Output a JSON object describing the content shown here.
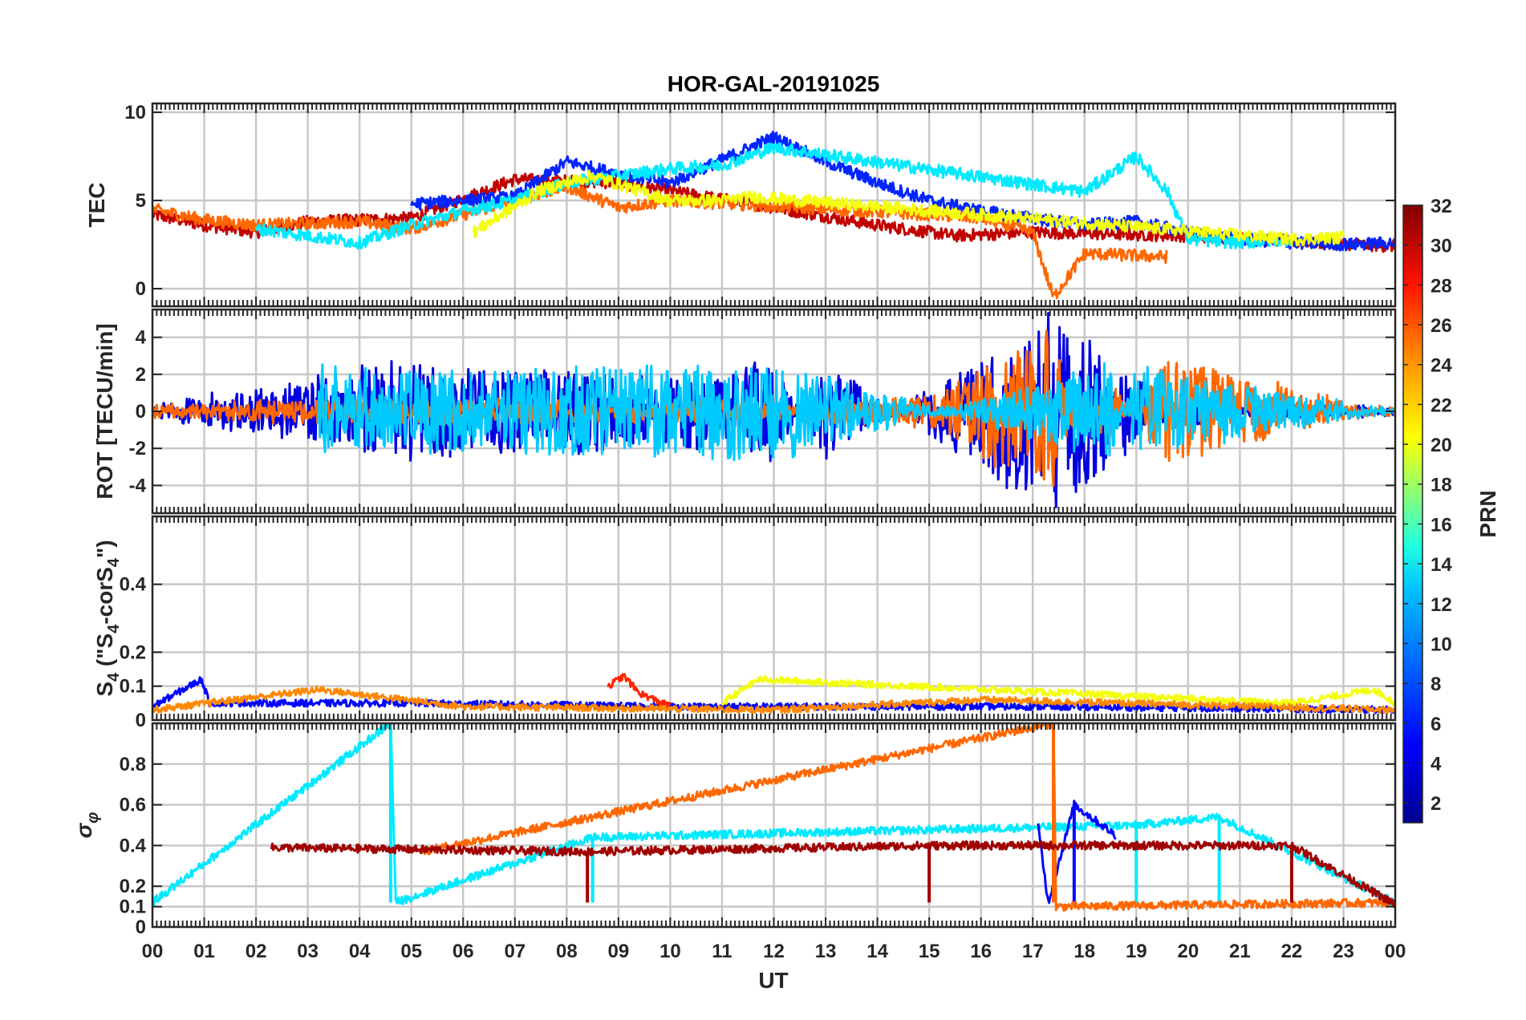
{
  "chart_data": {
    "type": "line",
    "title": "HOR-GAL-20191025",
    "xlabel": "UT",
    "x_ticks": [
      "00",
      "01",
      "02",
      "03",
      "04",
      "05",
      "06",
      "07",
      "08",
      "09",
      "10",
      "11",
      "12",
      "13",
      "14",
      "15",
      "16",
      "17",
      "18",
      "19",
      "20",
      "21",
      "22",
      "23",
      "00"
    ],
    "x_range_hours": [
      0,
      24
    ],
    "colorbar": {
      "label": "PRN",
      "range": [
        1,
        32
      ],
      "ticks": [
        "2",
        "4",
        "6",
        "8",
        "10",
        "12",
        "14",
        "16",
        "18",
        "20",
        "22",
        "24",
        "26",
        "28",
        "30",
        "32"
      ],
      "tick_values": [
        2,
        4,
        6,
        8,
        10,
        12,
        14,
        16,
        18,
        20,
        22,
        24,
        26,
        28,
        30,
        32
      ],
      "colormap": "jet",
      "colors": [
        "#00008f",
        "#0000ff",
        "#0080ff",
        "#00ffff",
        "#80ff80",
        "#ffff00",
        "#ff8000",
        "#ff0000",
        "#800000"
      ]
    },
    "panels": [
      {
        "id": "tec",
        "ylabel": "TEC",
        "ylim": [
          -1,
          10.5
        ],
        "yticks": [
          0,
          5,
          10
        ],
        "ytick_labels": [
          "0",
          "5",
          "10"
        ],
        "series_summary": [
          {
            "prn": 30,
            "x": [
              0,
              1,
              2,
              3,
              5,
              7,
              9,
              12,
              14,
              15.5,
              17,
              20,
              22,
              24
            ],
            "y": [
              4.2,
              3.6,
              3.2,
              3.8,
              4.0,
              6.2,
              6.0,
              4.6,
              3.6,
              3.0,
              3.2,
              3.0,
              2.7,
              2.4
            ]
          },
          {
            "prn": 25,
            "x": [
              0,
              1,
              2,
              3,
              4,
              5,
              6,
              7,
              8,
              9,
              10,
              15,
              16,
              17,
              17.4,
              18,
              19.6
            ],
            "y": [
              4.5,
              3.9,
              3.6,
              3.7,
              3.8,
              3.4,
              4.2,
              5.0,
              5.8,
              4.6,
              5.0,
              4.2,
              4.0,
              3.2,
              -0.5,
              2.0,
              1.8
            ]
          },
          {
            "prn": 6,
            "x": [
              5,
              7,
              8,
              9,
              10,
              12,
              13,
              14,
              15,
              16,
              17,
              18,
              19,
              20,
              21,
              22,
              23,
              24
            ],
            "y": [
              4.8,
              5.2,
              7.2,
              6.5,
              6.0,
              8.6,
              7.2,
              6.0,
              5.0,
              4.4,
              4.0,
              3.6,
              3.8,
              3.2,
              2.8,
              2.6,
              2.5,
              2.6
            ]
          },
          {
            "prn": 12,
            "x": [
              2,
              3,
              4,
              5,
              6,
              7,
              8,
              9,
              10,
              11,
              12,
              18,
              19,
              19.6,
              20,
              21,
              22
            ],
            "y": [
              3.4,
              3.0,
              2.6,
              3.6,
              4.4,
              5.0,
              6.0,
              6.4,
              6.8,
              7.0,
              8.0,
              5.5,
              7.5,
              5.5,
              2.8,
              2.6,
              2.8
            ]
          },
          {
            "prn": 20,
            "x": [
              6.2,
              7.5,
              8.5,
              10,
              11,
              11.6,
              22,
              23
            ],
            "y": [
              3.2,
              5.6,
              6.4,
              5.0,
              5.0,
              5.2,
              2.8,
              2.9
            ]
          }
        ]
      },
      {
        "id": "rot",
        "ylabel": "ROT [TECU/min]",
        "ylim": [
          -5.5,
          5.5
        ],
        "yticks": [
          -4,
          -2,
          0,
          2,
          4
        ],
        "ytick_labels": [
          "-4",
          "-2",
          "0",
          "2",
          "4"
        ],
        "series_summary": [
          {
            "prn": 4,
            "x": [
              0,
              4.6,
              10,
              12,
              13,
              17.3,
              17.4,
              20,
              24
            ],
            "y": [
              0.2,
              2.6,
              1.8,
              2.6,
              -2.5,
              5.5,
              -5.5,
              0.6,
              0.1
            ]
          },
          {
            "prn": 25,
            "x": [
              0,
              5,
              9,
              12,
              15,
              17.4,
              17.45,
              18.5,
              19.5,
              24
            ],
            "y": [
              0.3,
              0.6,
              0.5,
              0.4,
              0.8,
              4.8,
              -3.0,
              1.8,
              -2.8,
              0.1
            ]
          },
          {
            "prn": 11,
            "x": [
              3.2,
              4.6,
              12,
              18.5,
              19.0,
              24
            ],
            "y": [
              -2.4,
              -2.0,
              -2.6,
              2.6,
              -2.4,
              0.1
            ]
          }
        ]
      },
      {
        "id": "s4",
        "ylabel": "S4 (\"S4-corS4\")",
        "ylabel_main": "S",
        "ylabel_sub": "4",
        "ylabel_mid": " (\"S",
        "ylabel_mid2": "-corS",
        "ylabel_end": "\")",
        "ylim": [
          0,
          0.6
        ],
        "yticks": [
          0,
          0.1,
          0.2,
          0.4
        ],
        "ytick_labels": [
          "0",
          "0.1",
          "0.2",
          "0.4"
        ],
        "series_summary": [
          {
            "prn": 5,
            "x": [
              0,
              0.95,
              1.1,
              5,
              10,
              17,
              24
            ],
            "y": [
              0.04,
              0.12,
              0.05,
              0.05,
              0.04,
              0.04,
              0.03
            ]
          },
          {
            "prn": 27,
            "x": [
              8.8,
              9.1,
              9.4,
              10
            ],
            "y": [
              0.1,
              0.13,
              0.08,
              0.04
            ]
          },
          {
            "prn": 20,
            "x": [
              11,
              11.7,
              22,
              23.6,
              24
            ],
            "y": [
              0.05,
              0.12,
              0.05,
              0.09,
              0.05
            ]
          },
          {
            "prn": 24,
            "x": [
              0,
              3.2,
              6,
              12,
              16,
              24
            ],
            "y": [
              0.03,
              0.09,
              0.04,
              0.03,
              0.06,
              0.03
            ]
          }
        ]
      },
      {
        "id": "sigma_phi",
        "ylabel": "σφ",
        "ylabel_main": "σ",
        "ylabel_sub": "φ",
        "ylim": [
          0,
          1.0
        ],
        "yticks": [
          0,
          0.1,
          0.2,
          0.4,
          0.6,
          0.8
        ],
        "ytick_labels": [
          "0",
          "0.1",
          "0.2",
          "0.4",
          "0.6",
          "0.8"
        ],
        "series_summary": [
          {
            "prn": 12,
            "x": [
              0,
              4.6,
              4.7,
              8.5,
              19.0,
              20.6,
              24
            ],
            "y": [
              0.12,
              1.0,
              0.12,
              0.44,
              0.5,
              0.54,
              0.12
            ]
          },
          {
            "prn": 5,
            "x": [
              17.1,
              17.3,
              17.8,
              18.6
            ],
            "y": [
              0.5,
              0.12,
              0.6,
              0.45
            ]
          },
          {
            "prn": 25,
            "x": [
              5.2,
              17.4,
              17.45,
              24
            ],
            "y": [
              0.37,
              1.0,
              0.1,
              0.12
            ]
          },
          {
            "prn": 31,
            "x": [
              2.3,
              8.4,
              15.0,
              22.0,
              24
            ],
            "y": [
              0.39,
              0.37,
              0.4,
              0.4,
              0.11
            ]
          }
        ]
      }
    ]
  }
}
